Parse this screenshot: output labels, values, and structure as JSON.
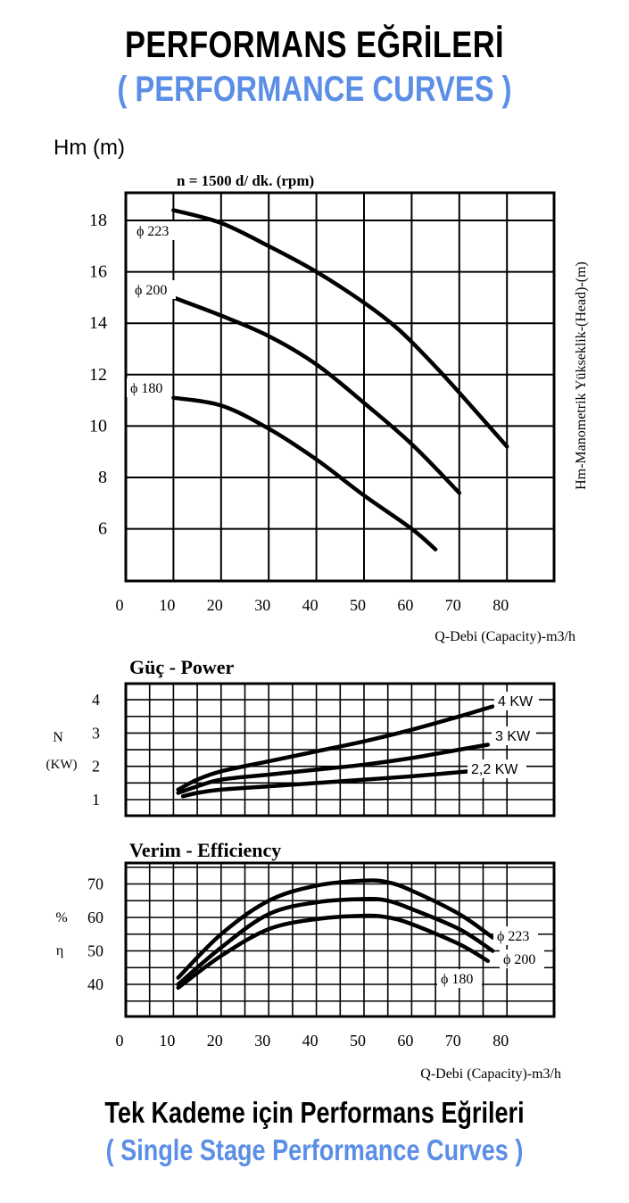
{
  "header": {
    "title": "PERFORMANS EĞRİLERİ",
    "subtitle": "( PERFORMANCE CURVES )"
  },
  "footer": {
    "title": "Tek Kademe için Performans Eğrileri",
    "subtitle": "( Single Stage Performance Curves )"
  },
  "colors": {
    "accent": "#5b8ee6",
    "curve": "#000000",
    "grid": "#000000"
  },
  "chart_data": [
    {
      "type": "line",
      "title": "",
      "subtitle": "n = 1500 d/ dk.  (rpm)",
      "ylabel": "Hm (m)",
      "ylabel_right": "Hm-Manometrik Yükseklik-(Head)-(m)",
      "xlabel": "Q-Debi (Capacity)-m3/h",
      "xlim": [
        0,
        90
      ],
      "ylim": [
        4,
        19
      ],
      "xticks": [
        0,
        10,
        20,
        30,
        40,
        50,
        60,
        70,
        80
      ],
      "yticks": [
        6,
        8,
        10,
        12,
        14,
        16,
        18
      ],
      "grid": true,
      "series": [
        {
          "name": "ϕ 223",
          "x": [
            10,
            20,
            30,
            40,
            50,
            57,
            63,
            70,
            80
          ],
          "y": [
            18.4,
            17.9,
            17.0,
            16.0,
            14.8,
            13.8,
            12.7,
            11.3,
            9.2
          ]
        },
        {
          "name": "ϕ 200",
          "x": [
            10,
            20,
            30,
            40,
            50,
            60,
            70
          ],
          "y": [
            15.0,
            14.3,
            13.5,
            12.4,
            10.9,
            9.3,
            7.4
          ]
        },
        {
          "name": "ϕ 180",
          "x": [
            10,
            20,
            30,
            40,
            50,
            60,
            65
          ],
          "y": [
            11.1,
            10.8,
            9.9,
            8.7,
            7.3,
            6.0,
            5.2
          ]
        }
      ]
    },
    {
      "type": "line",
      "title": "Güç - Power",
      "ylabel": "N",
      "ylabel_unit": "(KW)",
      "xlim": [
        0,
        90
      ],
      "ylim": [
        0.5,
        4.5
      ],
      "yticks": [
        1,
        2,
        3,
        4
      ],
      "grid": true,
      "series": [
        {
          "name": "4 KW",
          "x": [
            11,
            15,
            20,
            30,
            40,
            50,
            60,
            70,
            77
          ],
          "y": [
            1.3,
            1.6,
            1.85,
            2.15,
            2.45,
            2.75,
            3.1,
            3.5,
            3.8
          ]
        },
        {
          "name": "3 KW",
          "x": [
            11,
            15,
            20,
            30,
            40,
            50,
            60,
            70,
            76
          ],
          "y": [
            1.2,
            1.4,
            1.6,
            1.75,
            1.9,
            2.05,
            2.25,
            2.5,
            2.65
          ]
        },
        {
          "name": "2,2 KW",
          "x": [
            12,
            15,
            20,
            30,
            40,
            50,
            60,
            72
          ],
          "y": [
            1.1,
            1.2,
            1.3,
            1.4,
            1.5,
            1.6,
            1.7,
            1.85
          ]
        }
      ]
    },
    {
      "type": "line",
      "title": "Verim - Efficiency",
      "ylabel": "%",
      "ylabel_symbol": "η",
      "xlabel": "Q-Debi (Capacity)-m3/h",
      "xlim": [
        0,
        90
      ],
      "ylim": [
        30,
        77
      ],
      "xticks": [
        0,
        10,
        20,
        30,
        40,
        50,
        60,
        70,
        80
      ],
      "yticks": [
        40,
        50,
        60,
        70
      ],
      "grid": true,
      "series": [
        {
          "name": "ϕ 223",
          "x": [
            11,
            20,
            30,
            40,
            50,
            55,
            60,
            70,
            77
          ],
          "y": [
            42,
            55,
            65,
            69.5,
            71,
            70.5,
            68,
            61,
            54
          ]
        },
        {
          "name": "ϕ 200",
          "x": [
            11,
            20,
            30,
            40,
            50,
            55,
            60,
            70,
            77
          ],
          "y": [
            40,
            51,
            61,
            64.5,
            65.5,
            65,
            62.5,
            56.5,
            50
          ]
        },
        {
          "name": "ϕ 180",
          "x": [
            11,
            20,
            30,
            40,
            50,
            55,
            60,
            70,
            76
          ],
          "y": [
            39,
            48.5,
            56.5,
            59.5,
            60.5,
            60,
            58,
            52,
            47
          ]
        }
      ]
    }
  ]
}
